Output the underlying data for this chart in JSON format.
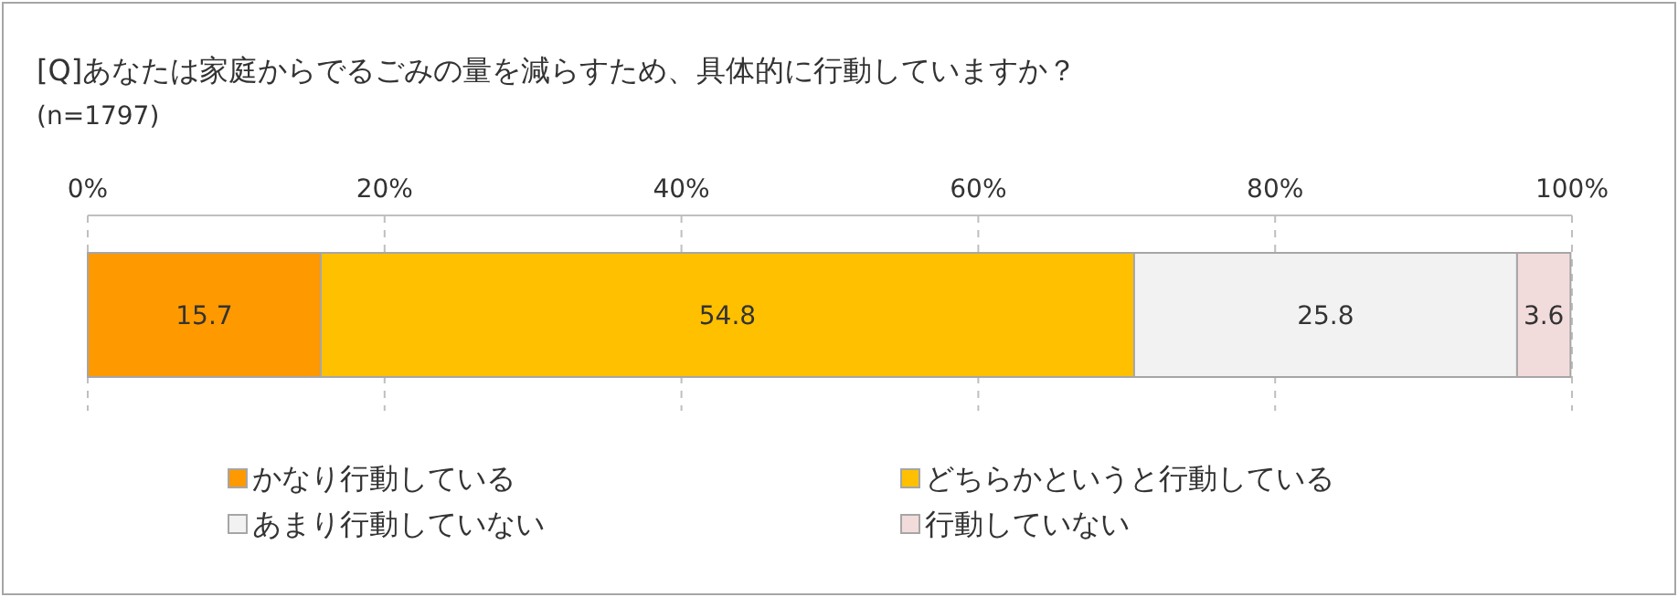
{
  "chart_data": {
    "type": "bar",
    "orientation": "horizontal",
    "stacked": true,
    "title": "[Q]あなたは家庭からでるごみの量を減らすため、具体的に行動していますか？",
    "subtitle": "(n=1797)",
    "categories": [
      null
    ],
    "series": [
      {
        "name": "かなり行動している",
        "color": "#ff9900",
        "values": [
          15.7
        ]
      },
      {
        "name": "どちらかというと行動している",
        "color": "#ffc000",
        "values": [
          54.8
        ]
      },
      {
        "name": "あまり行動していない",
        "color": "#f2f2f2",
        "values": [
          25.8
        ]
      },
      {
        "name": "行動していない",
        "color": "#f2dcdb",
        "values": [
          3.6
        ]
      }
    ],
    "xlim": [
      0,
      100
    ],
    "xticks": [
      {
        "value": 0,
        "label": "0%"
      },
      {
        "value": 20,
        "label": "20%"
      },
      {
        "value": 40,
        "label": "40%"
      },
      {
        "value": 60,
        "label": "60%"
      },
      {
        "value": 80,
        "label": "80%"
      },
      {
        "value": 100,
        "label": "100%"
      }
    ],
    "grid": "x",
    "legend": "bottom",
    "data_labels": true
  }
}
